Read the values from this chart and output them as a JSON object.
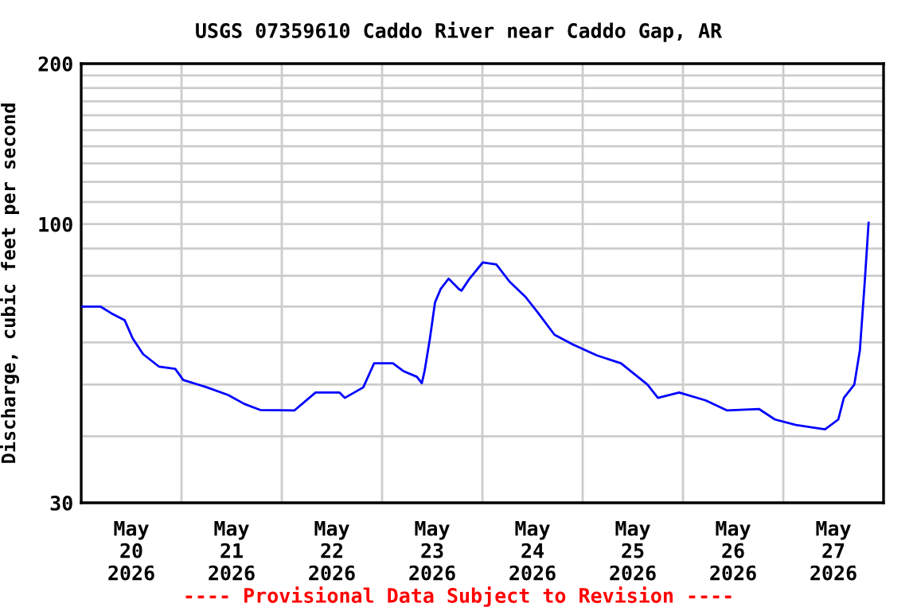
{
  "chart_data": {
    "type": "line",
    "title": "USGS 07359610 Caddo River near Caddo Gap, AR",
    "ylabel": "Discharge, cubic feet per second",
    "annotations": [
      "---- Provisional Data Subject to Revision ----"
    ],
    "log": "y",
    "grid": true,
    "marker": "none",
    "line_style": "solid",
    "xlim": [
      "2026-05-20T00:00",
      "2026-05-28T00:00"
    ],
    "xticks": [
      {
        "value": "2026-05-20T00:00",
        "label": null
      },
      {
        "value": "2026-05-20T12:00",
        "label": "May\n20\n2026"
      },
      {
        "value": "2026-05-21T00:00",
        "label": null
      },
      {
        "value": "2026-05-21T12:00",
        "label": "May\n21\n2026"
      },
      {
        "value": "2026-05-22T00:00",
        "label": null
      },
      {
        "value": "2026-05-22T12:00",
        "label": "May\n22\n2026"
      },
      {
        "value": "2026-05-23T00:00",
        "label": null
      },
      {
        "value": "2026-05-23T12:00",
        "label": "May\n23\n2026"
      },
      {
        "value": "2026-05-24T00:00",
        "label": null
      },
      {
        "value": "2026-05-24T12:00",
        "label": "May\n24\n2026"
      },
      {
        "value": "2026-05-25T00:00",
        "label": null
      },
      {
        "value": "2026-05-25T12:00",
        "label": "May\n25\n2026"
      },
      {
        "value": "2026-05-26T00:00",
        "label": null
      },
      {
        "value": "2026-05-26T12:00",
        "label": "May\n26\n2026"
      },
      {
        "value": "2026-05-27T00:00",
        "label": null
      },
      {
        "value": "2026-05-27T12:00",
        "label": "May\n27\n2026"
      },
      {
        "value": "2026-05-28T00:00",
        "label": null
      }
    ],
    "ylim": [
      30,
      200
    ],
    "yticks": [
      30,
      {
        "value": 40,
        "label": null
      },
      {
        "value": 50,
        "label": null
      },
      {
        "value": 60,
        "label": null
      },
      {
        "value": 70,
        "label": null
      },
      {
        "value": 80,
        "label": null
      },
      {
        "value": 90,
        "label": null
      },
      100,
      {
        "value": 110,
        "label": null
      },
      {
        "value": 120,
        "label": null
      },
      {
        "value": 130,
        "label": null
      },
      {
        "value": 140,
        "label": null
      },
      {
        "value": 150,
        "label": null
      },
      {
        "value": 160,
        "label": null
      },
      {
        "value": 170,
        "label": null
      },
      {
        "value": 180,
        "label": null
      },
      {
        "value": 190,
        "label": null
      },
      200
    ],
    "x": [
      "2026-05-20T00:15",
      "2026-05-20T04:40",
      "2026-05-20T07:15",
      "2026-05-20T10:25",
      "2026-05-20T12:20",
      "2026-05-20T14:50",
      "2026-05-20T18:40",
      "2026-05-20T22:30",
      "2026-05-21T00:25",
      "2026-05-21T06:05",
      "2026-05-21T11:10",
      "2026-05-21T15:00",
      "2026-05-21T18:50",
      "2026-05-22T03:00",
      "2026-05-22T08:05",
      "2026-05-22T13:50",
      "2026-05-22T15:05",
      "2026-05-22T19:30",
      "2026-05-22T22:05",
      "2026-05-23T02:35",
      "2026-05-23T05:05",
      "2026-05-23T08:20",
      "2026-05-23T09:30",
      "2026-05-23T10:10",
      "2026-05-23T11:25",
      "2026-05-23T12:40",
      "2026-05-23T14:00",
      "2026-05-23T15:55",
      "2026-05-23T18:25",
      "2026-05-23T19:00",
      "2026-05-23T20:55",
      "2026-05-24T00:05",
      "2026-05-24T03:20",
      "2026-05-24T06:30",
      "2026-05-24T10:20",
      "2026-05-24T13:25",
      "2026-05-24T17:15",
      "2026-05-24T21:45",
      "2026-05-25T03:25",
      "2026-05-25T09:10",
      "2026-05-25T15:30",
      "2026-05-25T18:00",
      "2026-05-25T23:05",
      "2026-05-26T05:25",
      "2026-05-26T10:35",
      "2026-05-26T18:10",
      "2026-05-26T22:00",
      "2026-05-27T03:00",
      "2026-05-27T10:00",
      "2026-05-27T13:10",
      "2026-05-27T14:30",
      "2026-05-27T17:00",
      "2026-05-27T18:20",
      "2026-05-27T19:30",
      "2026-05-27T20:25"
    ],
    "series": [
      {
        "color": "#0000ff",
        "values": [
          70,
          70,
          68,
          66,
          61,
          57,
          54,
          53.5,
          51,
          49.4,
          47.8,
          46,
          44.8,
          44.7,
          48.3,
          48.3,
          47.2,
          49.4,
          54.8,
          54.8,
          53,
          51.7,
          50.3,
          53,
          60.8,
          71.3,
          75.5,
          79,
          75.5,
          75,
          79,
          84.7,
          84,
          78,
          73,
          68,
          62,
          59.4,
          56.7,
          54.8,
          50,
          47.2,
          48.3,
          46.7,
          44.7,
          45,
          43,
          42,
          41.2,
          43,
          47.2,
          50,
          58,
          78,
          100.6
        ]
      }
    ]
  }
}
